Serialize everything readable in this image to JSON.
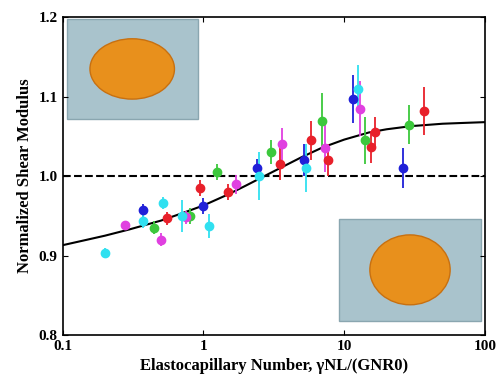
{
  "chart_data": {
    "type": "scatter",
    "x_label": "Elastocapillary Number, γNL/(GNR0)",
    "y_label": "Normalized Shear Modulus",
    "log": "x",
    "xlim": [
      0.1,
      100
    ],
    "xticks": [
      0.1,
      1,
      10,
      100
    ],
    "ylim": [
      0.8,
      1.2
    ],
    "yticks": [
      {
        "value": 0.8,
        "label": "0.8"
      },
      {
        "value": 0.9,
        "label": "0.9"
      },
      {
        "value": 1.0,
        "label": "1.0"
      },
      {
        "value": 1.1,
        "label": "1.1"
      },
      {
        "value": 1.2,
        "label": "1.2"
      }
    ],
    "series": [
      {
        "type": "line",
        "color": "#000000",
        "line_style": "solid",
        "x": [
          0.1,
          0.15,
          0.2,
          0.3,
          0.5,
          0.7,
          1,
          1.5,
          2,
          3,
          5,
          7,
          10,
          15,
          20,
          30,
          50,
          70,
          100
        ],
        "values": [
          0.913,
          0.92,
          0.925,
          0.933,
          0.944,
          0.953,
          0.963,
          0.977,
          0.988,
          1.004,
          1.024,
          1.036,
          1.046,
          1.055,
          1.059,
          1.063,
          1.066,
          1.067,
          1.068
        ]
      },
      {
        "type": "line",
        "color": "#000000",
        "line_style": "dashed",
        "x": [
          0.1,
          100
        ],
        "values": [
          1.0,
          1.0
        ]
      },
      {
        "type": "scatter",
        "color": "#2020d8",
        "marker": "circle",
        "x": [
          0.37,
          1.0,
          2.4,
          5.2,
          11.5,
          26
        ],
        "values": [
          0.957,
          0.962,
          1.01,
          1.02,
          1.097,
          1.01
        ],
        "errors": [
          0.008,
          0.01,
          0.012,
          0.02,
          0.03,
          0.025
        ]
      },
      {
        "type": "scatter",
        "color": "#e8202a",
        "marker": "circle",
        "x": [
          0.55,
          0.95,
          1.5,
          3.5,
          5.8,
          7.7,
          15.5,
          16.5,
          37
        ],
        "values": [
          0.947,
          0.985,
          0.98,
          1.015,
          1.045,
          1.02,
          1.037,
          1.055,
          1.082
        ],
        "errors": [
          0.008,
          0.01,
          0.01,
          0.02,
          0.025,
          0.02,
          0.02,
          0.02,
          0.03
        ]
      },
      {
        "type": "scatter",
        "color": "#3cc83c",
        "marker": "circle",
        "x": [
          0.45,
          0.8,
          1.25,
          3.0,
          7.0,
          14,
          29
        ],
        "values": [
          0.935,
          0.95,
          1.005,
          1.03,
          1.07,
          1.045,
          1.065
        ],
        "errors": [
          0.008,
          0.01,
          0.01,
          0.015,
          0.035,
          0.03,
          0.025
        ]
      },
      {
        "type": "scatter",
        "color": "#e040e0",
        "marker": "circle",
        "x": [
          0.28,
          0.5,
          0.75,
          1.7,
          3.6,
          7.3,
          13
        ],
        "values": [
          0.938,
          0.92,
          0.948,
          0.99,
          1.04,
          1.035,
          1.085
        ],
        "errors": [
          0.006,
          0.008,
          0.008,
          0.012,
          0.02,
          0.03,
          0.035
        ]
      },
      {
        "type": "scatter",
        "color": "#30e0f0",
        "marker": "circle",
        "x": [
          0.2,
          0.37,
          0.52,
          0.7,
          1.1,
          2.5,
          5.4,
          12.5
        ],
        "values": [
          0.903,
          0.943,
          0.966,
          0.95,
          0.937,
          1.0,
          1.01,
          1.11
        ],
        "errors": [
          0.006,
          0.008,
          0.008,
          0.02,
          0.015,
          0.03,
          0.03,
          0.03
        ]
      }
    ]
  }
}
